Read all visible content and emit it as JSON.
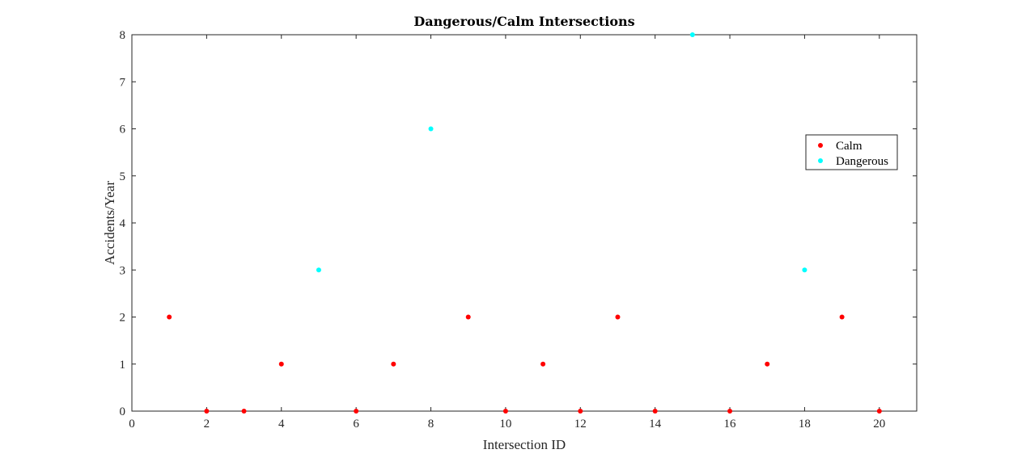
{
  "chart_data": {
    "type": "scatter",
    "title": "Dangerous/Calm Intersections",
    "xlabel": "Intersection ID",
    "ylabel": "Accidents/Year",
    "xlim": [
      0,
      21
    ],
    "ylim": [
      0,
      8
    ],
    "xticks": [
      0,
      2,
      4,
      6,
      8,
      10,
      12,
      14,
      16,
      18,
      20
    ],
    "yticks": [
      0,
      1,
      2,
      3,
      4,
      5,
      6,
      7,
      8
    ],
    "grid": false,
    "legend_position": "right",
    "series": [
      {
        "name": "Calm",
        "color": "#ff0000",
        "points": [
          [
            1,
            2
          ],
          [
            2,
            0
          ],
          [
            3,
            0
          ],
          [
            4,
            1
          ],
          [
            6,
            0
          ],
          [
            7,
            1
          ],
          [
            9,
            2
          ],
          [
            10,
            0
          ],
          [
            11,
            1
          ],
          [
            12,
            0
          ],
          [
            13,
            2
          ],
          [
            14,
            0
          ],
          [
            16,
            0
          ],
          [
            17,
            1
          ],
          [
            19,
            2
          ],
          [
            20,
            0
          ]
        ]
      },
      {
        "name": "Dangerous",
        "color": "#00ffff",
        "points": [
          [
            5,
            3
          ],
          [
            8,
            6
          ],
          [
            15,
            8
          ],
          [
            18,
            3
          ]
        ]
      }
    ]
  }
}
